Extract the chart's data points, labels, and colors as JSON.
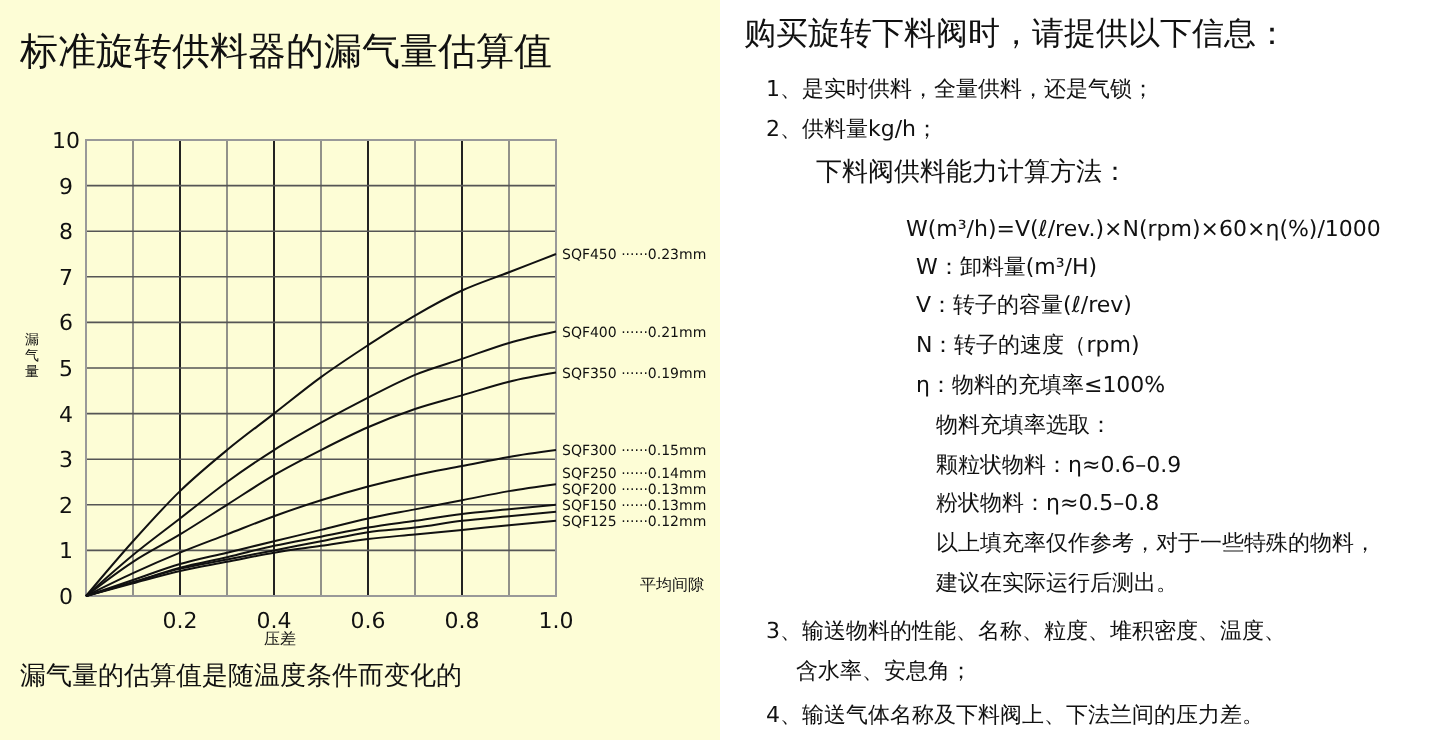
{
  "chart_data": [
    {
      "type": "line",
      "title": "标准旋转供料器的漏气量估算值",
      "xlabel": "压差",
      "ylabel": "漏气量",
      "annotations": [
        "平均间隙",
        "漏气量的估算值是随温度条件而变化的"
      ],
      "x": [
        0,
        0.1,
        0.2,
        0.3,
        0.4,
        0.5,
        0.6,
        0.7,
        0.8,
        0.9,
        1.0
      ],
      "xlim": [
        0,
        1
      ],
      "ylim": [
        0,
        10
      ],
      "xticks": [
        {
          "value": 0,
          "label": null
        },
        {
          "value": 0.1,
          "label": null
        },
        {
          "value": 0.2,
          "label": "0.2"
        },
        {
          "value": 0.3,
          "label": null
        },
        {
          "value": 0.4,
          "label": "0.4"
        },
        {
          "value": 0.5,
          "label": null
        },
        {
          "value": 0.6,
          "label": "0.6"
        },
        {
          "value": 0.7,
          "label": null
        },
        {
          "value": 0.8,
          "label": "0.8"
        },
        {
          "value": 0.9,
          "label": null
        },
        {
          "value": 1.0,
          "label": "1.0"
        }
      ],
      "yticks": [
        0,
        1,
        2,
        3,
        4,
        5,
        6,
        7,
        8,
        9,
        10
      ],
      "grid": true,
      "marker": "none",
      "line_style": "solid",
      "series": [
        {
          "name": "SQF450 ······0.23mm",
          "color": "#111111",
          "values": [
            0,
            1.2,
            2.3,
            3.2,
            4.0,
            4.8,
            5.5,
            6.15,
            6.7,
            7.1,
            7.5
          ]
        },
        {
          "name": "SQF400 ······0.21mm",
          "color": "#111111",
          "values": [
            0,
            0.9,
            1.7,
            2.5,
            3.2,
            3.8,
            4.35,
            4.85,
            5.2,
            5.55,
            5.8
          ]
        },
        {
          "name": "SQF350 ······0.19mm",
          "color": "#111111",
          "values": [
            0,
            0.75,
            1.35,
            2.0,
            2.65,
            3.2,
            3.7,
            4.1,
            4.4,
            4.7,
            4.9
          ]
        },
        {
          "name": "SQF300 ······0.15mm",
          "color": "#111111",
          "values": [
            0,
            0.5,
            0.95,
            1.35,
            1.75,
            2.1,
            2.4,
            2.65,
            2.85,
            3.05,
            3.2
          ]
        },
        {
          "name": "SQF250 ······0.14mm",
          "color": "#111111",
          "values": [
            0,
            0.35,
            0.7,
            0.95,
            1.2,
            1.45,
            1.7,
            1.9,
            2.1,
            2.3,
            2.45
          ]
        },
        {
          "name": "SQF200 ······0.13mm",
          "color": "#111111",
          "values": [
            0,
            0.3,
            0.62,
            0.85,
            1.1,
            1.3,
            1.5,
            1.65,
            1.8,
            1.9,
            2.0
          ]
        },
        {
          "name": "SQF150 ······0.13mm",
          "color": "#111111",
          "values": [
            0,
            0.3,
            0.6,
            0.8,
            1.0,
            1.2,
            1.4,
            1.5,
            1.65,
            1.75,
            1.85
          ]
        },
        {
          "name": "SQF125 ······0.12mm",
          "color": "#111111",
          "values": [
            0,
            0.28,
            0.55,
            0.75,
            0.95,
            1.1,
            1.25,
            1.35,
            1.45,
            1.55,
            1.65
          ]
        }
      ]
    },
    {
      "type": "other",
      "title": "购买旋转下料阀时，请提供以下信息：",
      "annotations": [
        "1、是实时供料，全量供料，还是气锁；",
        "2、供料量kg/h；",
        "下料阀供料能力计算方法：",
        "W(m³/h)=V(ℓ/rev.)×N(rpm)×60×η(%)/1000",
        "W：卸料量(m³/H)",
        "V：转子的容量(ℓ/rev)",
        "N：转子的速度（rpm)",
        "η：物料的充填率≤100%",
        "物料充填率选取：",
        "颗粒状物料：η≈0.6–0.9",
        "粉状物料：η≈0.5–0.8",
        "以上填充率仅作参考，对于一些特殊的物料，",
        "建议在实际运行后测出。",
        "3、输送物料的性能、名称、粒度、堆积密度、温度、",
        "含水率、安息角；",
        "4、输送气体名称及下料阀上、下法兰间的压力差。"
      ]
    }
  ]
}
